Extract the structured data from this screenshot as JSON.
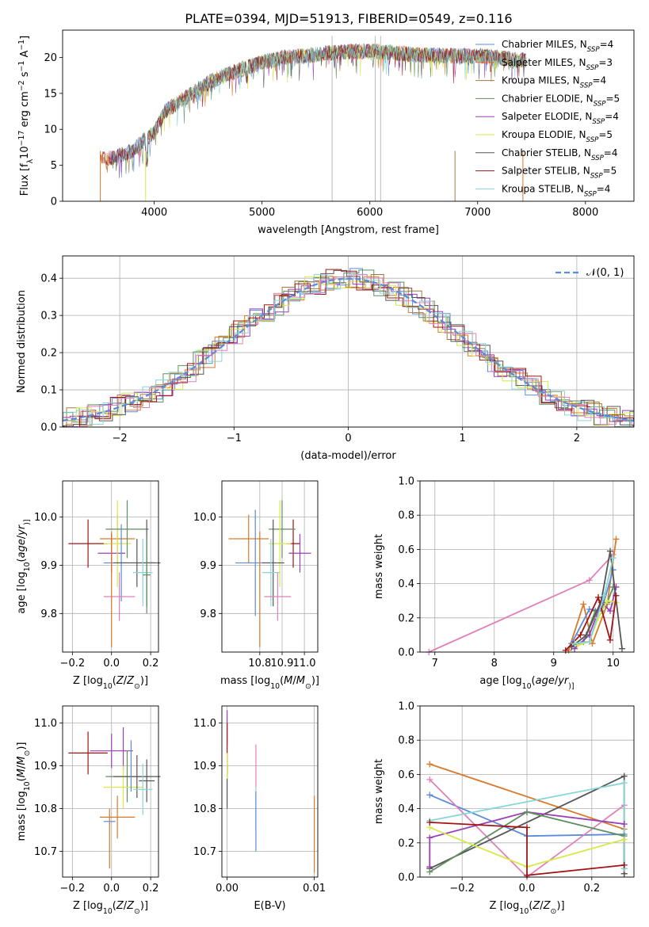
{
  "title": "PLATE=0394, MJD=51913, FIBERID=0549, z=0.116",
  "series_colors": [
    "#5b8bd9",
    "#d9792a",
    "#a5793a",
    "#5f8f5f",
    "#9b3fb5",
    "#d9e84a",
    "#555555",
    "#a01414",
    "#86d6d6",
    "#e080b8",
    "#7a2a2a"
  ],
  "chart_data": [
    {
      "id": "spectrum",
      "type": "line",
      "xlabel": "wavelength [Angstrom, rest frame]",
      "ylabel": "Flux [f",
      "ylabel_parts": [
        "λ",
        "10",
        "−17",
        "erg cm",
        "−2",
        "s",
        "−1",
        "A",
        "−1",
        "]"
      ],
      "xlim": [
        3150,
        8450
      ],
      "ylim": [
        0,
        23.8
      ],
      "xticks": [
        4000,
        5000,
        6000,
        7000,
        8000
      ],
      "yticks": [
        0,
        5,
        10,
        15,
        20
      ],
      "grid": false,
      "legend_position": "right",
      "continuum": {
        "x": [
          3600,
          3700,
          3800,
          3900,
          4000,
          4100,
          4300,
          4500,
          4700,
          4900,
          5000,
          5200,
          5400,
          5600,
          5800,
          6000,
          6200,
          6400,
          6600,
          6800,
          7000,
          7200,
          7400
        ],
        "y": [
          6.0,
          6.5,
          7.0,
          8.5,
          9.5,
          12.5,
          14.5,
          16.5,
          17.8,
          18.8,
          19.3,
          20.0,
          20.2,
          20.6,
          20.8,
          20.9,
          20.7,
          20.4,
          20.3,
          20.2,
          20.2,
          20.0,
          19.6
        ]
      },
      "series": [
        {
          "name_parts": [
            "Chabrier MILES, N",
            "SSP",
            "=4"
          ],
          "color": "#5b8bd9"
        },
        {
          "name_parts": [
            "Salpeter MILES, N",
            "SSP",
            "=3"
          ],
          "color": "#d9792a"
        },
        {
          "name_parts": [
            "Kroupa MILES, N",
            "SSP",
            "=4"
          ],
          "color": "#a5793a"
        },
        {
          "name_parts": [
            "Chabrier ELODIE, N",
            "SSP",
            "=5"
          ],
          "color": "#5f8f5f"
        },
        {
          "name_parts": [
            "Salpeter ELODIE, N",
            "SSP",
            "=4"
          ],
          "color": "#9b3fb5"
        },
        {
          "name_parts": [
            "Kroupa ELODIE, N",
            "SSP",
            "=5"
          ],
          "color": "#d9e84a"
        },
        {
          "name_parts": [
            "Chabrier STELIB, N",
            "SSP",
            "=4"
          ],
          "color": "#555555"
        },
        {
          "name_parts": [
            "Salpeter STELIB, N",
            "SSP",
            "=5"
          ],
          "color": "#a01414"
        },
        {
          "name_parts": [
            "Kroupa STELIB, N",
            "SSP",
            "=4"
          ],
          "color": "#86d6d6"
        }
      ]
    },
    {
      "id": "residuals",
      "type": "histogram",
      "xlabel": "(data-model)/error",
      "ylabel": "Normed distribution",
      "xlim": [
        -2.5,
        2.5
      ],
      "ylim": [
        0,
        0.46
      ],
      "xticks": [
        -2,
        -1,
        0,
        1,
        2
      ],
      "yticks": [
        0.0,
        0.1,
        0.2,
        0.3,
        0.4
      ],
      "grid": true,
      "legend_position": "top-right",
      "legend_label": "𝒩(0, 1)",
      "reference_curve": "normal(0,1)"
    },
    {
      "id": "age-vs-Z",
      "type": "errorbar",
      "xlabel": "Z [log",
      "xlabel_parts": [
        "10",
        "(",
        "Z",
        "/",
        "Z",
        "⊙",
        ")]"
      ],
      "ylabel": "age  [log",
      "ylabel_parts": [
        "10",
        "(",
        "age",
        "/",
        "yr",
        ")]"
      ],
      "xlim": [
        -0.25,
        0.24
      ],
      "ylim": [
        9.72,
        10.075
      ],
      "xticks": [
        -0.2,
        0.0,
        0.2
      ],
      "xticklabels": [
        "−0.2",
        "0.0",
        "0.2"
      ],
      "yticks": [
        9.8,
        9.9,
        10.0
      ],
      "grid": true,
      "points": [
        {
          "x": -0.12,
          "xerr": 0.1,
          "y": 9.945,
          "yerr": 0.05,
          "color": "#a01414"
        },
        {
          "x": 0.0,
          "xerr": 0.07,
          "y": 9.925,
          "yerr": 0.04,
          "color": "#9b3fb5"
        },
        {
          "x": 0.03,
          "xerr": 0.09,
          "y": 9.955,
          "yerr": 0.05,
          "color": "#d9792a"
        },
        {
          "x": 0.03,
          "xerr": 0.07,
          "y": 9.945,
          "yerr": 0.09,
          "color": "#d9e84a"
        },
        {
          "x": 0.08,
          "xerr": 0.11,
          "y": 9.975,
          "yerr": 0.06,
          "color": "#5f8f5f"
        },
        {
          "x": 0.05,
          "xerr": 0.09,
          "y": 9.905,
          "yerr": 0.08,
          "color": "#5b8bd9"
        },
        {
          "x": 0.13,
          "xerr": 0.12,
          "y": 9.905,
          "yerr": 0.05,
          "color": "#555555"
        },
        {
          "x": 0.18,
          "xerr": 0.04,
          "y": 9.905,
          "yerr": 0.09,
          "color": "#555555"
        },
        {
          "x": 0.16,
          "xerr": 0.05,
          "y": 9.885,
          "yerr": 0.07,
          "color": "#86d6d6"
        },
        {
          "x": 0.18,
          "xerr": 0.02,
          "y": 9.88,
          "yerr": 0.08,
          "color": "#5f8f5f"
        },
        {
          "x": 0.04,
          "xerr": 0.08,
          "y": 9.835,
          "yerr": 0.05,
          "color": "#e080b8"
        },
        {
          "x": 0.0,
          "xerr": 0.0,
          "y": 9.85,
          "yerr": 0.12,
          "color": "#d9792a"
        }
      ]
    },
    {
      "id": "age-vs-mass",
      "type": "errorbar",
      "xlabel": "mass [log",
      "xlabel_parts": [
        "10",
        "(",
        "M",
        "/",
        "M",
        "⊙",
        ")]"
      ],
      "ylabel": "",
      "xlim": [
        10.63,
        11.06
      ],
      "ylim": [
        9.72,
        10.075
      ],
      "xticks": [
        10.8,
        10.9,
        11.0
      ],
      "xticklabels": [
        "10.8",
        "10.9",
        "11.0"
      ],
      "yticks": [
        9.8,
        9.9,
        10.0
      ],
      "grid": true,
      "points": [
        {
          "x": 10.75,
          "xerr": 0.09,
          "y": 9.955,
          "yerr": 0.05,
          "color": "#d9792a"
        },
        {
          "x": 10.95,
          "xerr": 0.03,
          "y": 9.945,
          "yerr": 0.05,
          "color": "#a01414"
        },
        {
          "x": 10.98,
          "xerr": 0.05,
          "y": 9.925,
          "yerr": 0.04,
          "color": "#9b3fb5"
        },
        {
          "x": 10.9,
          "xerr": 0.06,
          "y": 9.975,
          "yerr": 0.06,
          "color": "#5f8f5f"
        },
        {
          "x": 10.89,
          "xerr": 0.05,
          "y": 9.945,
          "yerr": 0.09,
          "color": "#d9e84a"
        },
        {
          "x": 10.78,
          "xerr": 0.09,
          "y": 9.905,
          "yerr": 0.11,
          "color": "#5b8bd9"
        },
        {
          "x": 10.86,
          "xerr": 0.05,
          "y": 9.905,
          "yerr": 0.09,
          "color": "#555555"
        },
        {
          "x": 10.85,
          "xerr": 0.04,
          "y": 9.885,
          "yerr": 0.07,
          "color": "#86d6d6"
        },
        {
          "x": 10.88,
          "xerr": 0.06,
          "y": 9.835,
          "yerr": 0.05,
          "color": "#e080b8"
        },
        {
          "x": 10.8,
          "xerr": 0.0,
          "y": 9.85,
          "yerr": 0.12,
          "color": "#d9792a"
        }
      ]
    },
    {
      "id": "weight-vs-age",
      "type": "line",
      "xlabel": "age  [log",
      "xlabel_parts": [
        "10",
        "(",
        "age",
        "/",
        "yr",
        ")]"
      ],
      "ylabel": "mass weight",
      "xlim": [
        6.75,
        10.35
      ],
      "ylim": [
        0,
        1.0
      ],
      "xticks": [
        7,
        8,
        9,
        10
      ],
      "yticks": [
        0.0,
        0.2,
        0.4,
        0.6,
        0.8,
        1.0
      ],
      "grid": true,
      "series": [
        {
          "color": "#e080b8",
          "x": [
            6.9,
            9.6,
            10.0
          ],
          "y": [
            0.0,
            0.42,
            0.57
          ]
        },
        {
          "color": "#d9792a",
          "x": [
            9.25,
            9.5,
            9.65,
            9.9,
            10.05
          ],
          "y": [
            0.01,
            0.28,
            0.05,
            0.28,
            0.66
          ]
        },
        {
          "color": "#5b8bd9",
          "x": [
            9.3,
            9.6,
            9.8,
            10.0
          ],
          "y": [
            0.05,
            0.25,
            0.24,
            0.48
          ]
        },
        {
          "color": "#5f8f5f",
          "x": [
            9.3,
            9.5,
            9.7,
            9.9,
            10.0
          ],
          "y": [
            0.03,
            0.06,
            0.24,
            0.29,
            0.38
          ]
        },
        {
          "color": "#9b3fb5",
          "x": [
            9.35,
            9.6,
            9.8,
            9.95,
            10.05
          ],
          "y": [
            0.02,
            0.1,
            0.29,
            0.24,
            0.38
          ]
        },
        {
          "color": "#d9e84a",
          "x": [
            9.4,
            9.6,
            9.75,
            9.9,
            10.05
          ],
          "y": [
            0.04,
            0.06,
            0.2,
            0.3,
            0.29
          ]
        },
        {
          "color": "#555555",
          "x": [
            9.3,
            9.55,
            9.8,
            9.95,
            10.15
          ],
          "y": [
            0.03,
            0.1,
            0.3,
            0.59,
            0.02
          ]
        },
        {
          "color": "#a01414",
          "x": [
            9.2,
            9.45,
            9.75,
            9.95,
            10.05
          ],
          "y": [
            0.01,
            0.1,
            0.32,
            0.07,
            0.33
          ]
        },
        {
          "color": "#86d6d6",
          "x": [
            9.35,
            9.6,
            9.85,
            10.0
          ],
          "y": [
            0.05,
            0.06,
            0.33,
            0.55
          ]
        }
      ]
    },
    {
      "id": "mass-vs-Z",
      "type": "errorbar",
      "xlabel": "Z [log",
      "xlabel_parts": [
        "10",
        "(",
        "Z",
        "/",
        "Z",
        "⊙",
        ")]"
      ],
      "ylabel": "mass [log",
      "ylabel_parts": [
        "10",
        "(",
        "M",
        "/",
        "M",
        "⊙",
        ")]"
      ],
      "xlim": [
        -0.25,
        0.24
      ],
      "ylim": [
        10.64,
        11.04
      ],
      "xticks": [
        -0.2,
        0.0,
        0.2
      ],
      "xticklabels": [
        "−0.2",
        "0.0",
        "0.2"
      ],
      "yticks": [
        10.7,
        10.8,
        10.9,
        11.0
      ],
      "grid": true,
      "points": [
        {
          "x": -0.12,
          "xerr": 0.1,
          "y": 10.93,
          "yerr": 0.05,
          "color": "#a01414"
        },
        {
          "x": 0.0,
          "xerr": 0.11,
          "y": 10.935,
          "yerr": 0.04,
          "color": "#9b3fb5"
        },
        {
          "x": 0.06,
          "xerr": 0.0,
          "y": 10.94,
          "yerr": 0.05,
          "color": "#9b3fb5"
        },
        {
          "x": 0.03,
          "xerr": 0.09,
          "y": 10.78,
          "yerr": 0.05,
          "color": "#d9792a"
        },
        {
          "x": 0.08,
          "xerr": 0.11,
          "y": 10.875,
          "yerr": 0.06,
          "color": "#5f8f5f"
        },
        {
          "x": 0.06,
          "xerr": 0.1,
          "y": 10.85,
          "yerr": 0.05,
          "color": "#d9e84a"
        },
        {
          "x": 0.13,
          "xerr": 0.12,
          "y": 10.875,
          "yerr": 0.05,
          "color": "#555555"
        },
        {
          "x": 0.18,
          "xerr": 0.04,
          "y": 10.865,
          "yerr": 0.05,
          "color": "#555555"
        },
        {
          "x": 0.16,
          "xerr": 0.05,
          "y": 10.845,
          "yerr": 0.06,
          "color": "#86d6d6"
        },
        {
          "x": 0.1,
          "xerr": 0.0,
          "y": 10.9,
          "yerr": 0.06,
          "color": "#5b8bd9"
        },
        {
          "x": -0.01,
          "xerr": 0.0,
          "y": 10.73,
          "yerr": 0.07,
          "color": "#d9792a"
        },
        {
          "x": -0.01,
          "xerr": 0.03,
          "y": 10.77,
          "yerr": 0.0,
          "color": "#5b8bd9"
        }
      ]
    },
    {
      "id": "mass-vs-ebv",
      "type": "errorbar",
      "xlabel": "E(B-V)",
      "ylabel": "",
      "xlim": [
        -0.0006,
        0.0104
      ],
      "ylim": [
        10.64,
        11.04
      ],
      "xticks": [
        0.0,
        0.01
      ],
      "xticklabels": [
        "0.00",
        "0.01"
      ],
      "yticks": [
        10.7,
        10.8,
        10.9,
        11.0
      ],
      "grid": true,
      "points": [
        {
          "x": 0.0,
          "xerr": 0.0,
          "y": 10.99,
          "yerr": 0.04,
          "color": "#9b3fb5"
        },
        {
          "x": 0.0,
          "xerr": 0.0,
          "y": 10.94,
          "yerr": 0.06,
          "color": "#a01414"
        },
        {
          "x": 0.0,
          "xerr": 0.0,
          "y": 10.85,
          "yerr": 0.05,
          "color": "#555555"
        },
        {
          "x": 0.0,
          "xerr": 0.0,
          "y": 10.9,
          "yerr": 0.03,
          "color": "#d9e84a"
        },
        {
          "x": 0.0033,
          "xerr": 0.0,
          "y": 10.9,
          "yerr": 0.05,
          "color": "#e080b8"
        },
        {
          "x": 0.0033,
          "xerr": 0.0,
          "y": 10.8,
          "yerr": 0.05,
          "color": "#86d6d6"
        },
        {
          "x": 0.0033,
          "xerr": 0.0,
          "y": 10.77,
          "yerr": 0.07,
          "color": "#5b8bd9"
        },
        {
          "x": 0.01,
          "xerr": 0.0,
          "y": 10.74,
          "yerr": 0.09,
          "color": "#d9792a"
        }
      ]
    },
    {
      "id": "weight-vs-Z",
      "type": "line",
      "xlabel": "Z [log",
      "xlabel_parts": [
        "10",
        "(",
        "Z",
        "/",
        "Z",
        "⊙",
        ")]"
      ],
      "ylabel": "mass weight",
      "xlim": [
        -0.33,
        0.33
      ],
      "ylim": [
        0,
        1.0
      ],
      "xticks": [
        -0.2,
        0.0,
        0.2
      ],
      "xticklabels": [
        "−0.2",
        "0.0",
        "0.2"
      ],
      "yticks": [
        0.0,
        0.2,
        0.4,
        0.6,
        0.8,
        1.0
      ],
      "grid": true,
      "series": [
        {
          "color": "#d9792a",
          "x": [
            -0.3,
            0.3,
            0.3
          ],
          "y": [
            0.66,
            0.28,
            0.02
          ]
        },
        {
          "color": "#5b8bd9",
          "x": [
            -0.3,
            0.0,
            0.3,
            0.3
          ],
          "y": [
            0.48,
            0.24,
            0.25,
            0.05
          ]
        },
        {
          "color": "#e080b8",
          "x": [
            -0.3,
            0.0,
            0.3
          ],
          "y": [
            0.57,
            0.0,
            0.42
          ]
        },
        {
          "color": "#555555",
          "x": [
            -0.3,
            0.3,
            0.3
          ],
          "y": [
            0.05,
            0.59,
            0.02
          ]
        },
        {
          "color": "#86d6d6",
          "x": [
            -0.3,
            0.3,
            0.3
          ],
          "y": [
            0.33,
            0.55,
            0.05
          ]
        },
        {
          "color": "#9b3fb5",
          "x": [
            -0.3,
            -0.3,
            0.0,
            0.3
          ],
          "y": [
            0.06,
            0.23,
            0.38,
            0.31
          ]
        },
        {
          "color": "#5f8f5f",
          "x": [
            -0.3,
            0.0,
            0.3
          ],
          "y": [
            0.03,
            0.38,
            0.24
          ]
        },
        {
          "color": "#d9e84a",
          "x": [
            -0.3,
            0.0,
            0.3
          ],
          "y": [
            0.29,
            0.06,
            0.22
          ]
        },
        {
          "color": "#a01414",
          "x": [
            -0.3,
            0.0,
            0.0,
            0.3
          ],
          "y": [
            0.32,
            0.29,
            0.01,
            0.07
          ]
        }
      ]
    }
  ]
}
